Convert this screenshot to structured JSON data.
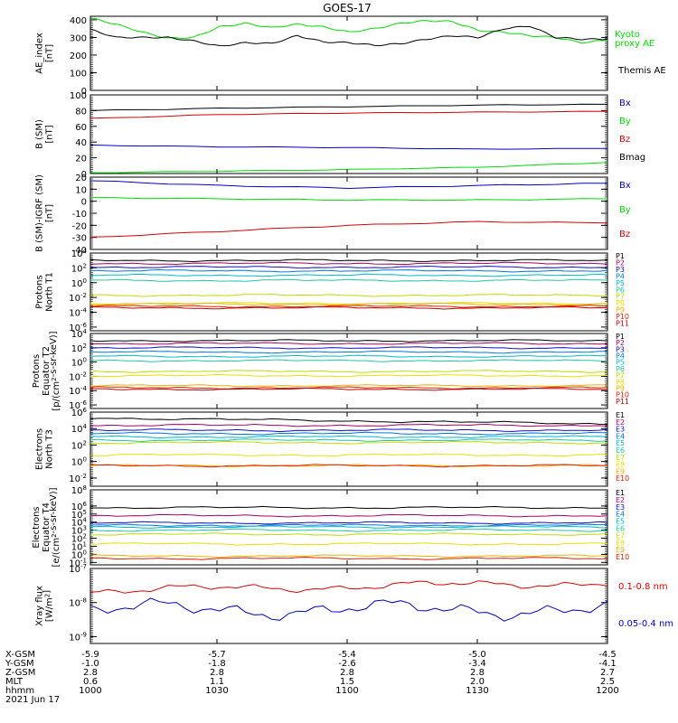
{
  "title": "GOES-17",
  "colors": {
    "black": "#000000",
    "red": "#dd0000",
    "green": "#00dd00",
    "blue": "#0000cc",
    "p": [
      "#000000",
      "#aa0066",
      "#1010c8",
      "#0077dd",
      "#00b8d0",
      "#20c8a0",
      "#b8e000",
      "#e8e000",
      "#f0b000",
      "#e02000",
      "#c00000"
    ]
  },
  "chart_data": [
    {
      "type": "line",
      "title": "GOES-17",
      "ylabel": [
        "AE_index",
        "[nT]"
      ],
      "yticks": [
        "400",
        "300",
        "200",
        "100",
        "0"
      ],
      "ylim": [
        0,
        420
      ],
      "legend": [
        "Kyoto",
        "proxy AE",
        "Themis AE"
      ],
      "x": [
        0,
        0.05,
        0.1,
        0.15,
        0.2,
        0.25,
        0.3,
        0.35,
        0.4,
        0.45,
        0.5,
        0.55,
        0.6,
        0.65,
        0.7,
        0.75,
        0.8,
        0.85,
        0.9,
        0.95,
        1
      ],
      "series": [
        {
          "color": "green",
          "values": [
            410,
            375,
            330,
            295,
            300,
            360,
            380,
            355,
            375,
            360,
            330,
            350,
            380,
            395,
            390,
            340,
            330,
            310,
            300,
            270,
            285
          ]
        },
        {
          "color": "black",
          "values": [
            345,
            300,
            300,
            300,
            280,
            250,
            270,
            265,
            310,
            275,
            270,
            255,
            265,
            290,
            310,
            300,
            350,
            365,
            300,
            290,
            290
          ]
        }
      ]
    },
    {
      "type": "line",
      "ylabel": [
        "B (SM)",
        "[nT]"
      ],
      "yticks": [
        "100",
        "80",
        "60",
        "40",
        "20",
        "0"
      ],
      "ylim": [
        0,
        100
      ],
      "legend": [
        "Bx",
        "By",
        "Bz",
        "Bmag"
      ],
      "x": [
        0,
        0.25,
        0.5,
        0.75,
        1
      ],
      "series": [
        {
          "color": "black",
          "values": [
            80,
            83,
            85,
            87,
            88
          ]
        },
        {
          "color": "red",
          "values": [
            70,
            75,
            77,
            78,
            79
          ]
        },
        {
          "color": "blue",
          "values": [
            36,
            34,
            33,
            31,
            32
          ]
        },
        {
          "color": "green",
          "values": [
            1,
            3,
            5,
            8,
            14
          ]
        }
      ]
    },
    {
      "type": "line",
      "ylabel": [
        "B (SM)-IGRF (SM)",
        "[nT]"
      ],
      "yticks": [
        "20",
        "10",
        "0",
        "-10",
        "-20",
        "-30",
        "-40"
      ],
      "ylim": [
        -40,
        20
      ],
      "legend": [
        "Bx",
        "By",
        "Bz"
      ],
      "x": [
        0,
        0.25,
        0.5,
        0.75,
        1
      ],
      "series": [
        {
          "color": "blue",
          "values": [
            17,
            13,
            11,
            13,
            15
          ]
        },
        {
          "color": "green",
          "values": [
            3,
            2,
            1,
            1,
            2
          ]
        },
        {
          "color": "red",
          "values": [
            -30,
            -25,
            -20,
            -17,
            -18
          ]
        }
      ]
    },
    {
      "type": "line",
      "ylabel": [
        "Protons",
        "North T1"
      ],
      "yticks": [
        "10^4",
        "10^2",
        "10^0",
        "10^-2",
        "10^-4",
        "10^-6"
      ],
      "ylim": [
        -6.5,
        4
      ],
      "legend": [
        "P1",
        "P2",
        "P3",
        "P4",
        "P5",
        "P6",
        "P7",
        "P8",
        "P9",
        "P10",
        "P11"
      ],
      "series_log10": [
        3,
        2.6,
        2.1,
        1.6,
        1.0,
        0.3,
        -1.7,
        -2.8,
        -2.9,
        -3.2,
        -3.4
      ]
    },
    {
      "type": "line",
      "ylabel": [
        "Protons",
        "Equator T2",
        "[p/(cm^2-s-sr-keV)]"
      ],
      "yticks": [
        "10^4",
        "10^2",
        "10^0",
        "10^-2",
        "10^-4",
        "10^-6"
      ],
      "ylim": [
        -6.5,
        4
      ],
      "legend": [
        "P1",
        "P2",
        "P3",
        "P4",
        "P5",
        "P6",
        "P7",
        "P8",
        "P9",
        "P10",
        "P11"
      ],
      "series_log10": [
        3,
        2.6,
        2.0,
        1.4,
        0.8,
        0.2,
        -1.3,
        -1.9,
        -3.3,
        -3.6,
        -3.8
      ]
    },
    {
      "type": "line",
      "ylabel": [
        "Electrons",
        "North T3"
      ],
      "yticks": [
        "10^6",
        "10^4",
        "10^2",
        "10^0",
        "10^-2"
      ],
      "ylim": [
        -3,
        6
      ],
      "legend": [
        "E1",
        "E2",
        "E3",
        "E4",
        "E5",
        "E6",
        "E7",
        "E8",
        "E9",
        "E10"
      ],
      "series_log10": [
        5.3,
        4.4,
        3.8,
        3.4,
        3.0,
        2.6,
        2.3,
        0.8,
        -0.5,
        -0.5
      ]
    },
    {
      "type": "line",
      "ylabel": [
        "Electrons",
        "Equator T4",
        "[e/(cm^2-s-sr-keV)]"
      ],
      "yticks": [
        "10^8",
        "10^6",
        "10^5",
        "10^4",
        "10^3",
        "10^2",
        "10^1",
        "10^0",
        "10^-1"
      ],
      "ylim": [
        -1.3,
        8
      ],
      "legend": [
        "E1",
        "E2",
        "E3",
        "E4",
        "E5",
        "E6",
        "E7",
        "E8",
        "E9",
        "E10"
      ],
      "series_log10": [
        5.8,
        4.8,
        3.9,
        3.6,
        3.4,
        3.0,
        2.5,
        1.3,
        -0.2,
        -0.5
      ]
    },
    {
      "type": "line",
      "ylabel": [
        "Xray flux",
        "[W/m^2]"
      ],
      "yticks": [
        "10^-7",
        "10^-8",
        "10^-9"
      ],
      "ylim": [
        -9.2,
        -7
      ],
      "legend": [
        "0.1-0.8 nm",
        "0.05-0.4 nm"
      ],
      "series_log10": [
        -7.65,
        -8.2
      ]
    }
  ],
  "footer": {
    "rows": [
      {
        "label": "X-GSM",
        "values": [
          "-5.9",
          "-5.7",
          "-5.4",
          "-5.0",
          "-4.5"
        ]
      },
      {
        "label": "Y-GSM",
        "values": [
          "-1.0",
          "-1.8",
          "-2.6",
          "-3.4",
          "-4.1"
        ]
      },
      {
        "label": "Z-GSM",
        "values": [
          "2.8",
          "2.8",
          "2.8",
          "2.8",
          "2.7"
        ]
      },
      {
        "label": "MLT",
        "values": [
          "0.6",
          "1.1",
          "1.5",
          "2.0",
          "2.5"
        ]
      },
      {
        "label": "hhmm",
        "values": [
          "1000",
          "1030",
          "1100",
          "1130",
          "1200"
        ]
      }
    ],
    "date": "2021 Jun 17"
  }
}
